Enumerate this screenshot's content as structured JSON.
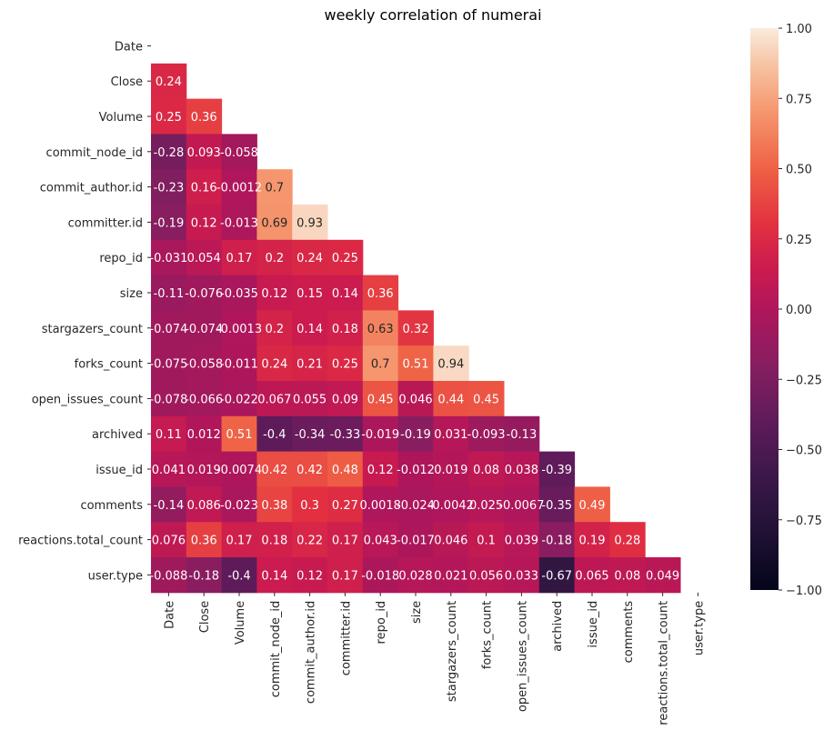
{
  "chart_data": {
    "type": "heatmap",
    "title": "weekly correlation of numerai",
    "xlabel": "",
    "ylabel": "",
    "mask": "upper-triangle-including-diagonal",
    "colormap": "rocket",
    "vmin": -1.0,
    "vmax": 1.0,
    "colorbar": {
      "position": "right",
      "ticks": [
        "1.00",
        "0.75",
        "0.50",
        "0.25",
        "0.00",
        "−0.25",
        "−0.50",
        "−0.75",
        "−1.00"
      ],
      "tick_values": [
        1.0,
        0.75,
        0.5,
        0.25,
        0.0,
        -0.25,
        -0.5,
        -0.75,
        -1.0
      ]
    },
    "labels": [
      "Date",
      "Close",
      "Volume",
      "commit_node_id",
      "commit_author.id",
      "committer.id",
      "repo_id",
      "size",
      "stargazers_count",
      "forks_count",
      "open_issues_count",
      "archived",
      "issue_id",
      "comments",
      "reactions.total_count",
      "user.type"
    ],
    "rows": [
      [],
      [
        0.24
      ],
      [
        0.25,
        0.36
      ],
      [
        -0.28,
        0.093,
        -0.058
      ],
      [
        -0.23,
        0.16,
        -0.0012,
        0.7
      ],
      [
        -0.19,
        0.12,
        -0.013,
        0.69,
        0.93
      ],
      [
        -0.031,
        0.054,
        0.17,
        0.2,
        0.24,
        0.25
      ],
      [
        -0.11,
        -0.076,
        -0.035,
        0.12,
        0.15,
        0.14,
        0.36
      ],
      [
        -0.074,
        -0.074,
        -0.0013,
        0.2,
        0.14,
        0.18,
        0.63,
        0.32
      ],
      [
        -0.075,
        -0.058,
        -0.011,
        0.24,
        0.21,
        0.25,
        0.7,
        0.51,
        0.94
      ],
      [
        -0.078,
        -0.066,
        -0.022,
        0.067,
        0.055,
        0.09,
        0.45,
        0.046,
        0.44,
        0.45
      ],
      [
        0.11,
        0.012,
        0.51,
        -0.4,
        -0.34,
        -0.33,
        -0.019,
        -0.19,
        0.031,
        -0.093,
        -0.13
      ],
      [
        0.041,
        0.019,
        -0.0074,
        0.42,
        0.42,
        0.48,
        0.12,
        -0.012,
        0.019,
        0.08,
        0.038,
        -0.39
      ],
      [
        -0.14,
        0.086,
        -0.023,
        0.38,
        0.3,
        0.27,
        0.0018,
        -0.024,
        -0.0042,
        0.025,
        -0.0067,
        -0.35,
        0.49
      ],
      [
        0.076,
        0.36,
        0.17,
        0.18,
        0.22,
        0.17,
        0.043,
        -0.017,
        0.046,
        0.1,
        0.039,
        -0.18,
        0.19,
        0.28
      ],
      [
        -0.088,
        -0.18,
        -0.4,
        0.14,
        0.12,
        0.17,
        -0.018,
        0.028,
        0.021,
        0.056,
        0.033,
        -0.67,
        0.065,
        0.08,
        0.049
      ]
    ],
    "row_labels_text": [
      [],
      [
        "0.24"
      ],
      [
        "0.25",
        "0.36"
      ],
      [
        "-0.28",
        "0.093",
        "-0.058"
      ],
      [
        "-0.23",
        "0.16",
        "-0.0012",
        "0.7"
      ],
      [
        "-0.19",
        "0.12",
        "-0.013",
        "0.69",
        "0.93"
      ],
      [
        "-0.031",
        "0.054",
        "0.17",
        "0.2",
        "0.24",
        "0.25"
      ],
      [
        "-0.11",
        "-0.076",
        "-0.035",
        "0.12",
        "0.15",
        "0.14",
        "0.36"
      ],
      [
        "-0.074",
        "-0.074",
        "-0.0013",
        "0.2",
        "0.14",
        "0.18",
        "0.63",
        "0.32"
      ],
      [
        "-0.075",
        "-0.058",
        "-0.011",
        "0.24",
        "0.21",
        "0.25",
        "0.7",
        "0.51",
        "0.94"
      ],
      [
        "-0.078",
        "-0.066",
        "-0.022",
        "0.067",
        "0.055",
        "0.09",
        "0.45",
        "0.046",
        "0.44",
        "0.45"
      ],
      [
        "0.11",
        "0.012",
        "0.51",
        "-0.4",
        "-0.34",
        "-0.33",
        "-0.019",
        "-0.19",
        "0.031",
        "-0.093",
        "-0.13"
      ],
      [
        "0.041",
        "0.019",
        "-0.0074",
        "0.42",
        "0.42",
        "0.48",
        "0.12",
        "-0.012",
        "0.019",
        "0.08",
        "0.038",
        "-0.39"
      ],
      [
        "-0.14",
        "0.086",
        "-0.023",
        "0.38",
        "0.3",
        "0.27",
        "0.0018",
        "-0.024",
        "-0.0042",
        "0.025",
        "-0.0067",
        "-0.35",
        "0.49"
      ],
      [
        "0.076",
        "0.36",
        "0.17",
        "0.18",
        "0.22",
        "0.17",
        "0.043",
        "-0.017",
        "0.046",
        "0.1",
        "0.039",
        "-0.18",
        "0.19",
        "0.28"
      ],
      [
        "-0.088",
        "-0.18",
        "-0.4",
        "0.14",
        "0.12",
        "0.17",
        "-0.018",
        "0.028",
        "0.021",
        "0.056",
        "0.033",
        "-0.67",
        "0.065",
        "0.08",
        "0.049"
      ]
    ],
    "grid": false
  }
}
